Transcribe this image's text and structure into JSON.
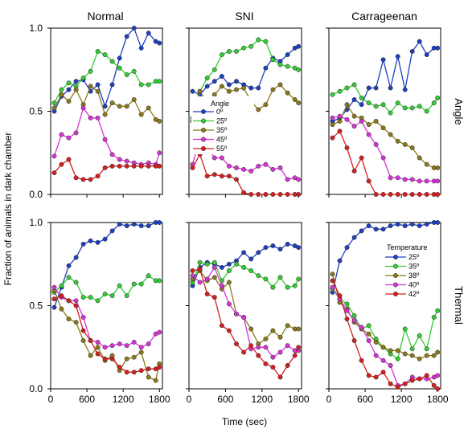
{
  "figure": {
    "ylabel": "Fraction of animals in dark chamber",
    "xlabel": "Time (sec)",
    "columns": [
      "Normal",
      "SNI",
      "Carrageenan"
    ],
    "rows": [
      "Angle",
      "Thermal"
    ],
    "colors": [
      "#1f3fbf",
      "#33cc33",
      "#8a7a1a",
      "#d633d6",
      "#d42020"
    ],
    "legends": {
      "angle": {
        "title": "Angle",
        "labels": [
          "0º",
          "25º",
          "35º",
          "45º",
          "55º"
        ],
        "placement": "SNI angle panel, center-left"
      },
      "thermal": {
        "title": "Temperature",
        "labels": [
          "25º",
          "35º",
          "38º",
          "40º",
          "42º"
        ],
        "placement": "Carrageenan thermal panel, top-right"
      }
    }
  },
  "chart_data": [
    {
      "type": "line",
      "row": "Angle",
      "column": "Normal",
      "title": "Normal",
      "x": [
        60,
        180,
        300,
        420,
        540,
        660,
        780,
        900,
        1020,
        1140,
        1260,
        1380,
        1500,
        1620,
        1740,
        1800
      ],
      "xlim": [
        0,
        1850
      ],
      "ylim": [
        0,
        1.0
      ],
      "xticks": [
        0,
        600,
        1200,
        1800
      ],
      "yticks": [
        0.0,
        0.5,
        1.0
      ],
      "grid": false,
      "series": [
        {
          "name": "0º",
          "values": [
            0.5,
            0.59,
            0.63,
            0.68,
            0.69,
            0.62,
            0.66,
            0.53,
            0.66,
            0.82,
            0.95,
            1.0,
            0.88,
            0.97,
            0.92,
            0.91
          ]
        },
        {
          "name": "25º",
          "values": [
            0.55,
            0.63,
            0.67,
            0.65,
            0.7,
            0.74,
            0.86,
            0.84,
            0.8,
            0.76,
            0.72,
            0.74,
            0.66,
            0.66,
            0.68,
            0.68
          ]
        },
        {
          "name": "35º",
          "values": [
            0.52,
            0.6,
            0.56,
            0.63,
            0.54,
            0.65,
            0.62,
            0.48,
            0.55,
            0.53,
            0.53,
            0.57,
            0.48,
            0.52,
            0.45,
            0.44
          ]
        },
        {
          "name": "45º",
          "values": [
            0.23,
            0.36,
            0.34,
            0.37,
            0.52,
            0.46,
            0.46,
            0.33,
            0.24,
            0.21,
            0.2,
            0.19,
            0.18,
            0.19,
            0.18,
            0.25
          ]
        },
        {
          "name": "55º",
          "values": [
            0.13,
            0.18,
            0.21,
            0.1,
            0.09,
            0.09,
            0.11,
            0.16,
            0.17,
            0.17,
            0.17,
            0.17,
            0.17,
            0.17,
            0.17,
            0.17
          ]
        }
      ]
    },
    {
      "type": "line",
      "row": "Angle",
      "column": "SNI",
      "title": "SNI",
      "x": [
        60,
        180,
        300,
        420,
        540,
        660,
        780,
        900,
        1020,
        1140,
        1260,
        1380,
        1500,
        1620,
        1740,
        1800
      ],
      "xlim": [
        0,
        1850
      ],
      "ylim": [
        0,
        1.0
      ],
      "xticks": [
        0,
        600,
        1200,
        1800
      ],
      "yticks": [
        0.0,
        0.5,
        1.0
      ],
      "grid": false,
      "series": [
        {
          "name": "0º",
          "values": [
            0.62,
            0.6,
            0.65,
            0.68,
            0.71,
            0.66,
            0.68,
            0.66,
            0.64,
            0.64,
            0.76,
            0.82,
            0.8,
            0.84,
            0.88,
            0.89
          ]
        },
        {
          "name": "25º",
          "values": [
            0.46,
            0.62,
            0.7,
            0.75,
            0.84,
            0.86,
            0.86,
            0.88,
            0.89,
            0.93,
            0.92,
            0.81,
            0.78,
            0.77,
            0.76,
            0.75
          ]
        },
        {
          "name": "35º",
          "values": [
            0.44,
            0.62,
            0.55,
            0.6,
            0.65,
            0.62,
            0.63,
            0.64,
            0.56,
            0.51,
            0.54,
            0.63,
            0.66,
            0.61,
            0.57,
            0.55
          ]
        },
        {
          "name": "45º",
          "values": [
            0.18,
            0.34,
            0.28,
            0.22,
            0.22,
            0.17,
            0.16,
            0.15,
            0.14,
            0.17,
            0.18,
            0.15,
            0.16,
            0.09,
            0.1,
            0.09
          ]
        },
        {
          "name": "55º",
          "values": [
            0.16,
            0.24,
            0.11,
            0.12,
            0.11,
            0.11,
            0.09,
            0.01,
            0.0,
            0.0,
            0.0,
            0.0,
            0.0,
            0.0,
            0.0,
            0.0
          ]
        }
      ]
    },
    {
      "type": "line",
      "row": "Angle",
      "column": "Carrageenan",
      "title": "Carrageenan",
      "x": [
        60,
        180,
        300,
        420,
        540,
        660,
        780,
        900,
        1020,
        1140,
        1260,
        1380,
        1500,
        1620,
        1740,
        1800
      ],
      "xlim": [
        0,
        1850
      ],
      "ylim": [
        0,
        1.0
      ],
      "xticks": [
        0,
        600,
        1200,
        1800
      ],
      "yticks": [
        0.0,
        0.5,
        1.0
      ],
      "grid": false,
      "series": [
        {
          "name": "0º",
          "values": [
            0.44,
            0.46,
            0.51,
            0.57,
            0.54,
            0.64,
            0.64,
            0.81,
            0.64,
            0.83,
            0.63,
            0.86,
            0.92,
            0.84,
            0.88,
            0.88
          ]
        },
        {
          "name": "25º",
          "values": [
            0.6,
            0.62,
            0.64,
            0.66,
            0.58,
            0.55,
            0.53,
            0.54,
            0.49,
            0.55,
            0.52,
            0.52,
            0.53,
            0.5,
            0.55,
            0.58
          ]
        },
        {
          "name": "35º",
          "values": [
            0.42,
            0.44,
            0.54,
            0.47,
            0.46,
            0.42,
            0.44,
            0.4,
            0.36,
            0.32,
            0.3,
            0.28,
            0.22,
            0.18,
            0.16,
            0.16
          ]
        },
        {
          "name": "45º",
          "values": [
            0.46,
            0.47,
            0.45,
            0.41,
            0.44,
            0.36,
            0.3,
            0.22,
            0.1,
            0.1,
            0.09,
            0.09,
            0.08,
            0.08,
            0.08,
            0.08
          ]
        },
        {
          "name": "55º",
          "values": [
            0.34,
            0.38,
            0.28,
            0.14,
            0.22,
            0.08,
            0.0,
            0.0,
            0.0,
            0.0,
            0.0,
            0.0,
            0.0,
            0.0,
            0.0,
            0.0
          ]
        }
      ]
    },
    {
      "type": "line",
      "row": "Thermal",
      "column": "Normal",
      "title": "",
      "x": [
        60,
        180,
        300,
        420,
        540,
        660,
        780,
        900,
        1020,
        1140,
        1260,
        1380,
        1500,
        1620,
        1740,
        1800
      ],
      "xlim": [
        0,
        1850
      ],
      "ylim": [
        0,
        1.0
      ],
      "xticks": [
        0,
        600,
        1200,
        1800
      ],
      "yticks": [
        0.0,
        0.5,
        1.0
      ],
      "grid": false,
      "series": [
        {
          "name": "25º",
          "values": [
            0.49,
            0.61,
            0.74,
            0.79,
            0.87,
            0.89,
            0.88,
            0.9,
            0.95,
            0.99,
            0.98,
            0.99,
            0.98,
            0.98,
            1.0,
            1.0
          ]
        },
        {
          "name": "35º",
          "values": [
            0.58,
            0.62,
            0.67,
            0.64,
            0.55,
            0.55,
            0.53,
            0.57,
            0.56,
            0.62,
            0.56,
            0.63,
            0.63,
            0.68,
            0.65,
            0.65
          ]
        },
        {
          "name": "38º",
          "values": [
            0.59,
            0.48,
            0.42,
            0.4,
            0.29,
            0.2,
            0.25,
            0.17,
            0.2,
            0.11,
            0.18,
            0.19,
            0.22,
            0.07,
            0.05,
            0.15
          ]
        },
        {
          "name": "40º",
          "values": [
            0.61,
            0.55,
            0.53,
            0.53,
            0.43,
            0.29,
            0.28,
            0.25,
            0.26,
            0.27,
            0.26,
            0.28,
            0.25,
            0.27,
            0.33,
            0.34
          ]
        },
        {
          "name": "42º",
          "values": [
            0.54,
            0.56,
            0.53,
            0.5,
            0.35,
            0.29,
            0.21,
            0.18,
            0.18,
            0.13,
            0.1,
            0.1,
            0.11,
            0.12,
            0.12,
            0.13
          ]
        }
      ]
    },
    {
      "type": "line",
      "row": "Thermal",
      "column": "SNI",
      "title": "",
      "x": [
        60,
        180,
        300,
        420,
        540,
        660,
        780,
        900,
        1020,
        1140,
        1260,
        1380,
        1500,
        1620,
        1740,
        1800
      ],
      "xlim": [
        0,
        1850
      ],
      "ylim": [
        0,
        1.0
      ],
      "xticks": [
        0,
        600,
        1200,
        1800
      ],
      "yticks": [
        0.0,
        0.5,
        1.0
      ],
      "grid": false,
      "series": [
        {
          "name": "25º",
          "values": [
            0.62,
            0.73,
            0.76,
            0.75,
            0.73,
            0.75,
            0.77,
            0.82,
            0.78,
            0.82,
            0.85,
            0.86,
            0.84,
            0.87,
            0.86,
            0.85
          ]
        },
        {
          "name": "35º",
          "values": [
            0.64,
            0.76,
            0.75,
            0.76,
            0.65,
            0.71,
            0.75,
            0.73,
            0.71,
            0.68,
            0.66,
            0.61,
            0.67,
            0.61,
            0.62,
            0.66
          ]
        },
        {
          "name": "38º",
          "values": [
            0.66,
            0.71,
            0.65,
            0.67,
            0.6,
            0.64,
            0.45,
            0.43,
            0.36,
            0.27,
            0.3,
            0.35,
            0.31,
            0.38,
            0.36,
            0.36
          ]
        },
        {
          "name": "40º",
          "values": [
            0.68,
            0.64,
            0.66,
            0.73,
            0.62,
            0.51,
            0.45,
            0.43,
            0.24,
            0.25,
            0.25,
            0.19,
            0.22,
            0.26,
            0.23,
            0.23
          ]
        },
        {
          "name": "42º",
          "values": [
            0.71,
            0.72,
            0.57,
            0.55,
            0.38,
            0.35,
            0.27,
            0.22,
            0.26,
            0.2,
            0.15,
            0.13,
            0.07,
            0.14,
            0.2,
            0.25
          ]
        }
      ]
    },
    {
      "type": "line",
      "row": "Thermal",
      "column": "Carrageenan",
      "title": "",
      "x": [
        60,
        180,
        300,
        420,
        540,
        660,
        780,
        900,
        1020,
        1140,
        1260,
        1380,
        1500,
        1620,
        1740,
        1800
      ],
      "xlim": [
        0,
        1850
      ],
      "ylim": [
        0,
        1.0
      ],
      "xticks": [
        0,
        600,
        1200,
        1800
      ],
      "yticks": [
        0.0,
        0.5,
        1.0
      ],
      "grid": false,
      "series": [
        {
          "name": "25º",
          "values": [
            0.58,
            0.77,
            0.85,
            0.91,
            0.95,
            0.98,
            0.96,
            0.96,
            0.98,
            0.99,
            0.98,
            0.99,
            0.98,
            0.99,
            1.0,
            1.0
          ]
        },
        {
          "name": "35º",
          "values": [
            0.6,
            0.54,
            0.51,
            0.44,
            0.36,
            0.38,
            0.3,
            0.25,
            0.21,
            0.18,
            0.36,
            0.24,
            0.32,
            0.24,
            0.43,
            0.47
          ]
        },
        {
          "name": "38º",
          "values": [
            0.69,
            0.52,
            0.48,
            0.4,
            0.36,
            0.33,
            0.28,
            0.25,
            0.23,
            0.23,
            0.21,
            0.2,
            0.18,
            0.2,
            0.2,
            0.22
          ]
        },
        {
          "name": "40º",
          "values": [
            0.61,
            0.54,
            0.47,
            0.41,
            0.37,
            0.29,
            0.2,
            0.17,
            0.14,
            0.02,
            0.03,
            0.07,
            0.06,
            0.06,
            0.07,
            0.08
          ]
        },
        {
          "name": "42º",
          "values": [
            0.65,
            0.56,
            0.42,
            0.29,
            0.17,
            0.08,
            0.07,
            0.1,
            0.03,
            0.01,
            0.03,
            0.05,
            0.06,
            0.08,
            0.02,
            0.0
          ]
        }
      ]
    }
  ]
}
